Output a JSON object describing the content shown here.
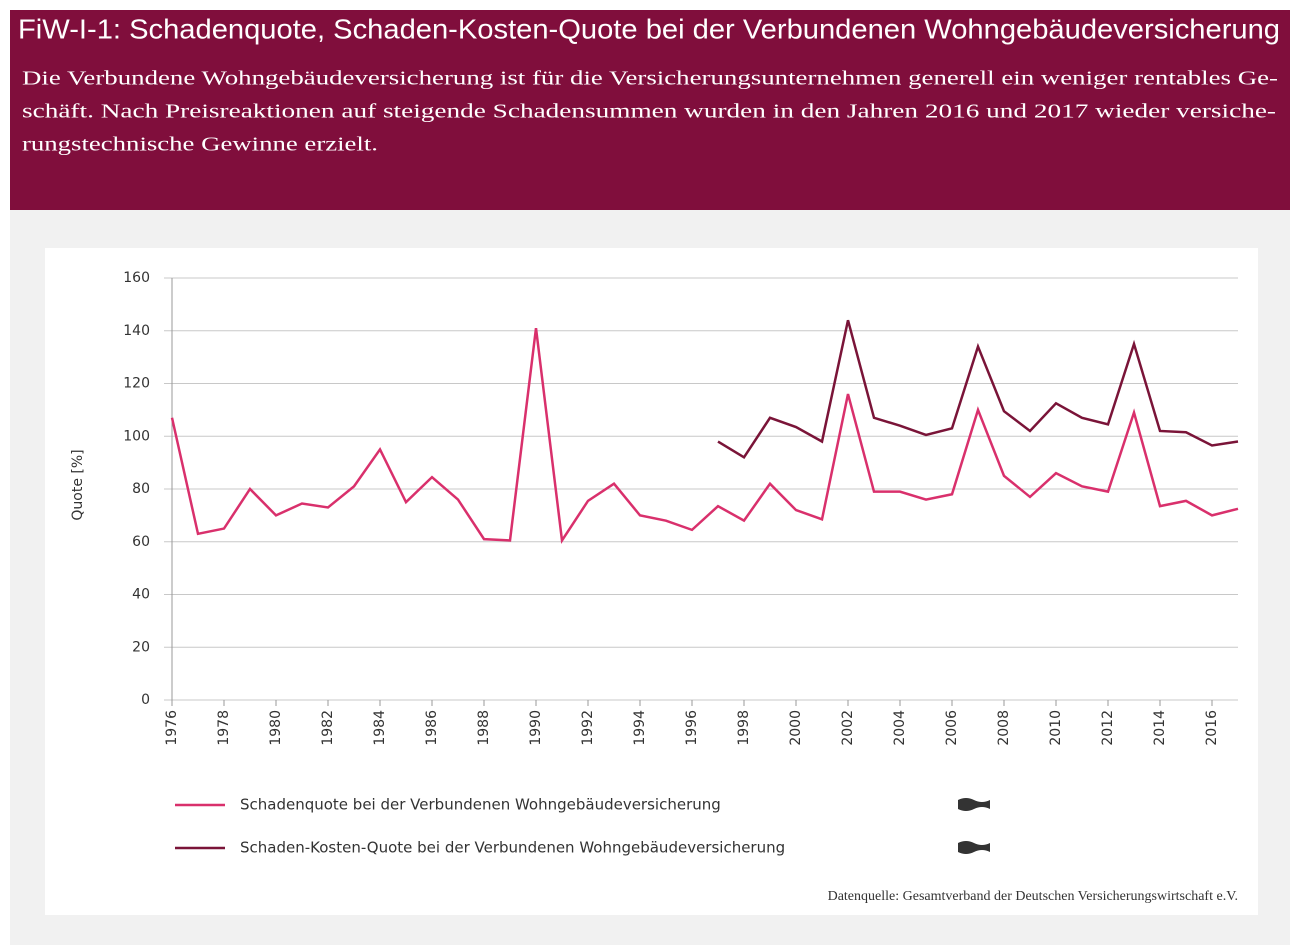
{
  "header": {
    "title": "FiW-I-1: Schadenquote, Schaden-Kosten-Quote bei der Verbundenen Wohngebäudeversicherung",
    "description_lines": [
      "Die Verbundene Wohngebäudeversicherung ist für die Versicherungsunternehmen generell ein weniger rentables Ge-",
      "schäft. Nach Preisreaktionen auf steigende Schadensummen wurden in den Jahren 2016 und 2017 wieder versiche-",
      "rungstechnische Gewinne erzielt."
    ]
  },
  "chart_data": {
    "type": "line",
    "ylabel": "Quote  [%]",
    "source": "Datenquelle: Gesamtverband der Deutschen Versicherungswirtschaft e.V.",
    "x": [
      1976,
      1977,
      1978,
      1979,
      1980,
      1981,
      1982,
      1983,
      1984,
      1985,
      1986,
      1987,
      1988,
      1989,
      1990,
      1991,
      1992,
      1993,
      1994,
      1995,
      1996,
      1997,
      1998,
      1999,
      2000,
      2001,
      2002,
      2003,
      2004,
      2005,
      2006,
      2007,
      2008,
      2009,
      2010,
      2011,
      2012,
      2013,
      2014,
      2015,
      2016,
      2017
    ],
    "series": [
      {
        "name": "Schadenquote bei der  Verbundenen Wohngebäudeversicherung",
        "color": "#d9306c",
        "values": [
          107,
          63,
          65,
          80,
          70,
          74.5,
          73,
          81,
          95,
          75,
          84.5,
          76,
          61,
          60.5,
          141,
          60.5,
          75.5,
          82,
          70,
          68,
          64.5,
          73.5,
          68,
          82,
          72,
          68.5,
          116,
          79,
          79,
          76,
          78,
          110,
          85,
          77,
          86,
          81,
          79,
          109,
          73.5,
          75.5,
          70,
          72.5
        ]
      },
      {
        "name": "Schaden-Kosten-Quote bei der Verbundenen Wohngebäudeversicherung",
        "color": "#7a1438",
        "values": [
          null,
          null,
          null,
          null,
          null,
          null,
          null,
          null,
          null,
          null,
          null,
          null,
          null,
          null,
          null,
          null,
          null,
          null,
          null,
          null,
          null,
          98,
          92,
          107,
          103.5,
          98,
          144,
          107,
          104,
          100.5,
          103,
          134,
          109.5,
          102,
          112.5,
          107,
          104.5,
          135,
          102,
          101.5,
          96.5,
          98
        ]
      }
    ],
    "xlim": [
      1976,
      2017
    ],
    "xticks": [
      1976,
      1978,
      1980,
      1982,
      1984,
      1986,
      1988,
      1990,
      1992,
      1994,
      1996,
      1998,
      2000,
      2002,
      2004,
      2006,
      2008,
      2010,
      2012,
      2014,
      2016
    ],
    "ylim": [
      0,
      160
    ],
    "yticks": [
      0,
      20,
      40,
      60,
      80,
      100,
      120,
      140,
      160
    ],
    "grid": true
  }
}
